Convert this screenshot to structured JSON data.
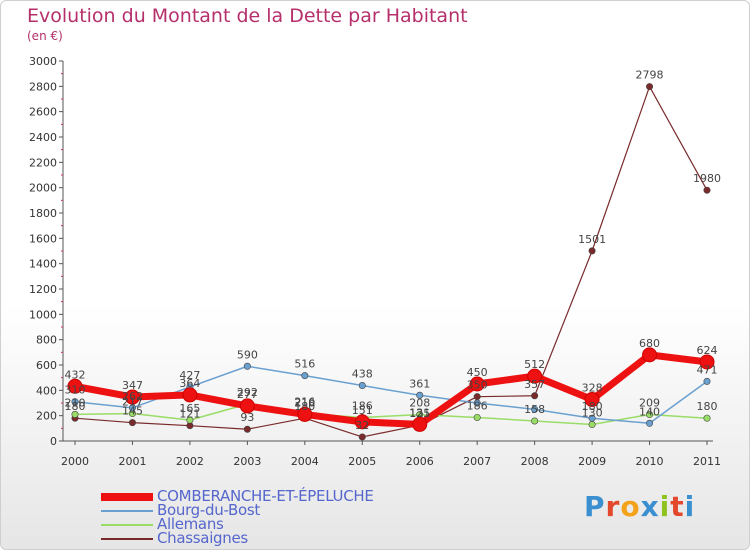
{
  "title": "Evolution du Montant de la Dette par Habitant",
  "unit": "(en €)",
  "logo": {
    "text": "Proxiti",
    "colors": [
      "#3a8fd0",
      "#e3482c",
      "#f5a21b",
      "#3a8fd0",
      "#8dc21f",
      "#e3482c",
      "#3a8fd0"
    ]
  },
  "colors": {
    "title": "#b5306b",
    "axis": "#555555",
    "legend_text": "#5566cc"
  },
  "chart_data": {
    "type": "line",
    "title": "Evolution du Montant de la Dette par Habitant",
    "ylabel": "(en €)",
    "xlabel": "",
    "x": [
      "2000",
      "2001",
      "2002",
      "2003",
      "2004",
      "2005",
      "2006",
      "2007",
      "2008",
      "2009",
      "2010",
      "2011"
    ],
    "ylim": [
      0,
      3000
    ],
    "yticks": [
      "0",
      "200",
      "400",
      "600",
      "800",
      "1000",
      "1200",
      "1400",
      "1600",
      "1800",
      "2000",
      "2200",
      "2400",
      "2600",
      "2800",
      "3000"
    ],
    "grid": false,
    "legend": "bottom-left",
    "series": [
      {
        "name": "COMBERANCHE-ET-ÉPELUCHE",
        "color": "#ee1111",
        "width": 7,
        "values": [
          432,
          347,
          364,
          277,
          210,
          151,
          131,
          450,
          512,
          328,
          680,
          624
        ],
        "labels": [
          "432",
          "347",
          "364",
          "277",
          "210",
          "151",
          "131",
          "450",
          "512",
          "328",
          "680",
          "624"
        ]
      },
      {
        "name": "Bourg-du-Bost",
        "color": "#6aa0d0",
        "width": 1.5,
        "values": [
          310,
          262,
          427,
          590,
          516,
          438,
          361,
          300,
          250,
          180,
          140,
          471
        ],
        "labels": [
          "310",
          "262",
          "427",
          "590",
          "516",
          "438",
          "361",
          "",
          "",
          "180",
          "140",
          "471"
        ]
      },
      {
        "name": "Allemans",
        "color": "#99dd66",
        "width": 1.5,
        "values": [
          210,
          217,
          165,
          292,
          216,
          186,
          208,
          186,
          158,
          130,
          209,
          180
        ],
        "labels": [
          "210",
          "217",
          "165",
          "292",
          "216",
          "186",
          "208",
          "186",
          "158",
          "130",
          "209",
          "180"
        ]
      },
      {
        "name": "Chassaignes",
        "color": "#7a2a2a",
        "width": 1.2,
        "values": [
          180,
          145,
          121,
          93,
          180,
          32,
          125,
          350,
          357,
          1501,
          2798,
          1980
        ],
        "labels": [
          "180",
          "145",
          "121",
          "93",
          "180",
          "32",
          "125",
          "350",
          "357",
          "1501",
          "2798",
          "1980"
        ]
      }
    ]
  }
}
